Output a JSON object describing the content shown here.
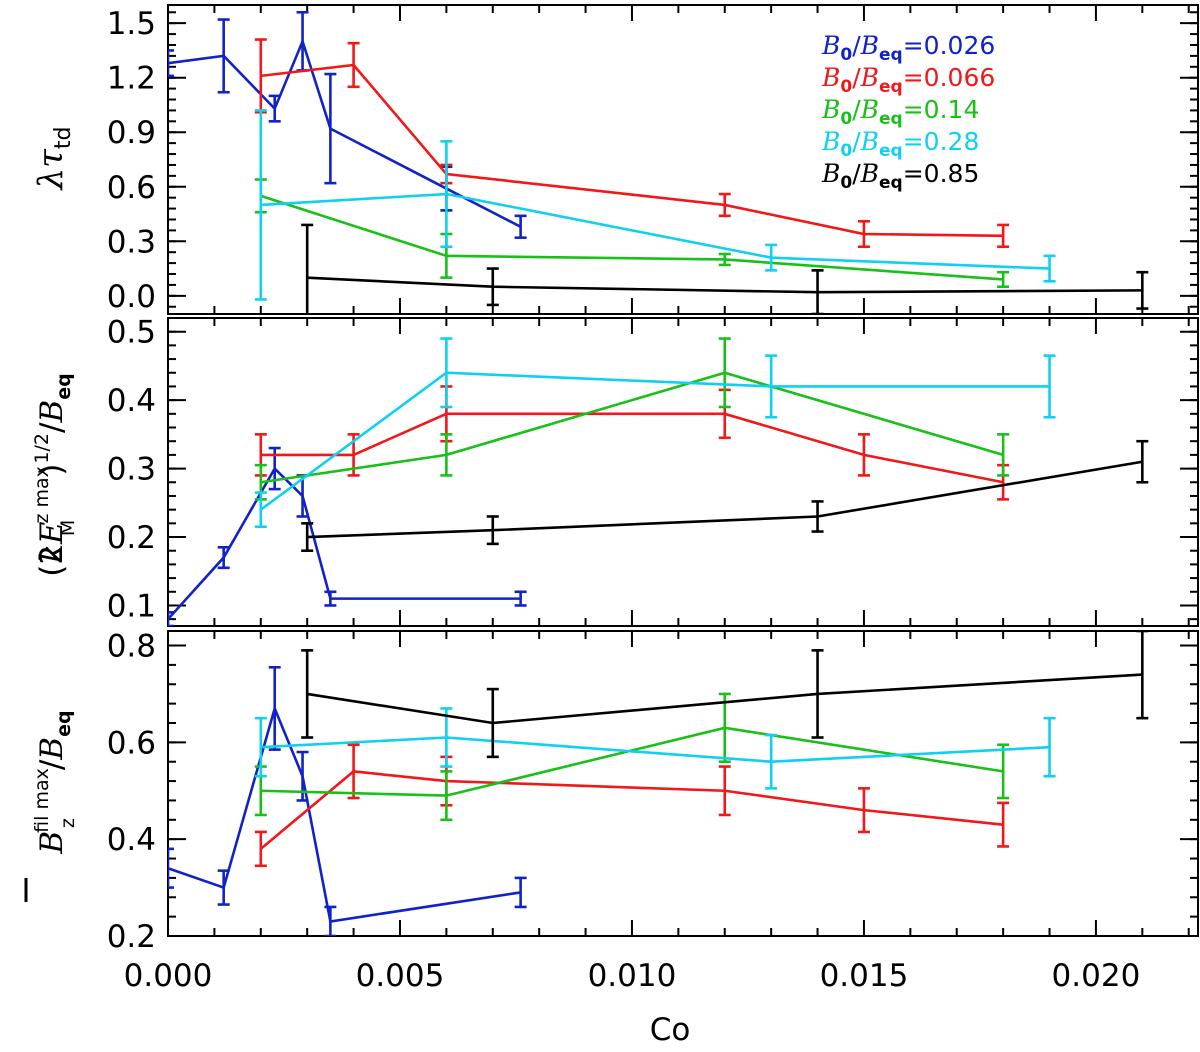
{
  "chart_data": [
    {
      "type": "line",
      "panel": "top",
      "ylabel": "λτ_td",
      "ylabel_parts": {
        "lambda": "λ",
        "tau": "τ",
        "sub": "td"
      },
      "ylim": [
        -0.1,
        1.6
      ],
      "yticks": [
        0.0,
        0.3,
        0.6,
        0.9,
        1.2,
        1.5
      ],
      "ytick_labels": [
        "0.0",
        "0.3",
        "0.6",
        "0.9",
        "1.2",
        "1.5"
      ],
      "series": [
        {
          "name": "B0/Beq=0.026",
          "color": "#1022c8",
          "x": [
            0.0,
            0.0012,
            0.0023,
            0.0029,
            0.0035,
            0.006,
            0.0076
          ],
          "y": [
            1.28,
            1.32,
            1.03,
            1.4,
            0.92,
            0.59,
            0.38
          ],
          "err": [
            0.07,
            0.2,
            0.07,
            0.16,
            0.3,
            0.12,
            0.06
          ]
        },
        {
          "name": "B0/Beq=0.066",
          "color": "#f01818",
          "x": [
            0.002,
            0.004,
            0.006,
            0.012,
            0.015,
            0.018
          ],
          "y": [
            1.21,
            1.27,
            0.67,
            0.5,
            0.34,
            0.33
          ],
          "err": [
            0.2,
            0.12,
            0.05,
            0.06,
            0.07,
            0.06
          ]
        },
        {
          "name": "B0/Beq=0.14",
          "color": "#18c018",
          "x": [
            0.002,
            0.006,
            0.012,
            0.018
          ],
          "y": [
            0.55,
            0.22,
            0.2,
            0.09
          ],
          "err": [
            0.09,
            0.12,
            0.03,
            0.04
          ]
        },
        {
          "name": "B0/Beq=0.28",
          "color": "#10d0f0",
          "x": [
            0.002,
            0.006,
            0.013,
            0.019
          ],
          "y": [
            0.5,
            0.56,
            0.21,
            0.15
          ],
          "err": [
            0.52,
            0.29,
            0.07,
            0.07
          ]
        },
        {
          "name": "B0/Beq=0.85",
          "color": "#000000",
          "x": [
            0.003,
            0.007,
            0.014,
            0.021
          ],
          "y": [
            0.1,
            0.05,
            0.02,
            0.03
          ],
          "err": [
            0.29,
            0.1,
            0.12,
            0.1
          ]
        }
      ]
    },
    {
      "type": "line",
      "panel": "middle",
      "ylabel": "(2kE_M^z max)^1/2 / B_eq",
      "ylim": [
        0.07,
        0.52
      ],
      "yticks": [
        0.1,
        0.2,
        0.3,
        0.4,
        0.5
      ],
      "ytick_labels": [
        "0.1",
        "0.2",
        "0.3",
        "0.4",
        "0.5"
      ],
      "series": [
        {
          "name": "B0/Beq=0.026",
          "color": "#1022c8",
          "x": [
            0.0,
            0.0012,
            0.0023,
            0.0029,
            0.0035,
            0.0076
          ],
          "y": [
            0.08,
            0.17,
            0.3,
            0.26,
            0.11,
            0.11
          ],
          "err": [
            0.01,
            0.015,
            0.03,
            0.03,
            0.01,
            0.01
          ]
        },
        {
          "name": "B0/Beq=0.066",
          "color": "#f01818",
          "x": [
            0.002,
            0.004,
            0.006,
            0.012,
            0.015,
            0.018
          ],
          "y": [
            0.32,
            0.32,
            0.38,
            0.38,
            0.32,
            0.28
          ],
          "err": [
            0.03,
            0.03,
            0.04,
            0.035,
            0.03,
            0.025
          ]
        },
        {
          "name": "B0/Beq=0.14",
          "color": "#18c018",
          "x": [
            0.002,
            0.006,
            0.012,
            0.018
          ],
          "y": [
            0.28,
            0.32,
            0.44,
            0.32
          ],
          "err": [
            0.025,
            0.03,
            0.05,
            0.03
          ]
        },
        {
          "name": "B0/Beq=0.28",
          "color": "#10d0f0",
          "x": [
            0.002,
            0.006,
            0.013,
            0.019
          ],
          "y": [
            0.24,
            0.44,
            0.42,
            0.42
          ],
          "err": [
            0.025,
            0.05,
            0.045,
            0.045
          ]
        },
        {
          "name": "B0/Beq=0.85",
          "color": "#000000",
          "x": [
            0.003,
            0.007,
            0.014,
            0.021
          ],
          "y": [
            0.2,
            0.21,
            0.23,
            0.31
          ],
          "err": [
            0.02,
            0.02,
            0.022,
            0.03
          ]
        }
      ]
    },
    {
      "type": "line",
      "panel": "bottom",
      "ylabel": "B̄_z^fil max / B_eq",
      "ylim": [
        0.2,
        0.83
      ],
      "yticks": [
        0.2,
        0.4,
        0.6,
        0.8
      ],
      "ytick_labels": [
        "0.2",
        "0.4",
        "0.6",
        "0.8"
      ],
      "series": [
        {
          "name": "B0/Beq=0.026",
          "color": "#1022c8",
          "x": [
            0.0,
            0.0012,
            0.0023,
            0.0029,
            0.0035,
            0.0076
          ],
          "y": [
            0.34,
            0.3,
            0.67,
            0.53,
            0.23,
            0.29
          ],
          "err": [
            0.04,
            0.035,
            0.085,
            0.05,
            0.03,
            0.03
          ]
        },
        {
          "name": "B0/Beq=0.066",
          "color": "#f01818",
          "x": [
            0.002,
            0.004,
            0.006,
            0.012,
            0.015,
            0.018
          ],
          "y": [
            0.38,
            0.54,
            0.52,
            0.5,
            0.46,
            0.43
          ],
          "err": [
            0.035,
            0.055,
            0.05,
            0.05,
            0.045,
            0.045
          ]
        },
        {
          "name": "B0/Beq=0.14",
          "color": "#18c018",
          "x": [
            0.002,
            0.006,
            0.012,
            0.018
          ],
          "y": [
            0.5,
            0.49,
            0.63,
            0.54
          ],
          "err": [
            0.05,
            0.05,
            0.07,
            0.055
          ]
        },
        {
          "name": "B0/Beq=0.28",
          "color": "#10d0f0",
          "x": [
            0.002,
            0.006,
            0.013,
            0.019
          ],
          "y": [
            0.59,
            0.61,
            0.56,
            0.59
          ],
          "err": [
            0.06,
            0.06,
            0.055,
            0.06
          ]
        },
        {
          "name": "B0/Beq=0.85",
          "color": "#000000",
          "x": [
            0.003,
            0.007,
            0.014,
            0.021
          ],
          "y": [
            0.7,
            0.64,
            0.7,
            0.74
          ],
          "err": [
            0.09,
            0.07,
            0.09,
            0.09
          ]
        }
      ]
    }
  ],
  "shared_x": {
    "xlabel": "Co",
    "xlim": [
      0.0,
      0.0222
    ],
    "xticks": [
      0.0,
      0.005,
      0.01,
      0.015,
      0.02
    ],
    "xtick_labels": [
      "0.000",
      "0.005",
      "0.010",
      "0.015",
      "0.020"
    ],
    "minor_xticks": [
      0.001,
      0.002,
      0.003,
      0.004,
      0.006,
      0.007,
      0.008,
      0.009,
      0.011,
      0.012,
      0.013,
      0.014,
      0.016,
      0.017,
      0.018,
      0.019,
      0.021,
      0.022
    ]
  },
  "legend": {
    "placement": "top-right",
    "entries": [
      {
        "prefix": "B",
        "sub0": "0",
        "slash": "/",
        "beq": "B",
        "subeq": "eq",
        "value": "=0.026",
        "color": "#1022c8"
      },
      {
        "prefix": "B",
        "sub0": "0",
        "slash": "/",
        "beq": "B",
        "subeq": "eq",
        "value": "=0.066",
        "color": "#f01818"
      },
      {
        "prefix": "B",
        "sub0": "0",
        "slash": "/",
        "beq": "B",
        "subeq": "eq",
        "value": "=0.14",
        "color": "#18c018"
      },
      {
        "prefix": "B",
        "sub0": "0",
        "slash": "/",
        "beq": "B",
        "subeq": "eq",
        "value": "=0.28",
        "color": "#10d0f0"
      },
      {
        "prefix": "B",
        "sub0": "0",
        "slash": "/",
        "beq": "B",
        "subeq": "eq",
        "value": "=0.85",
        "color": "#000000"
      }
    ]
  },
  "ylabels": {
    "middle": {
      "open": "(2",
      "k": "k",
      "E": "E",
      "sup": "z max",
      "sub": "M",
      "close": ")",
      "pow": "1/2",
      "slash": "/",
      "B": "B",
      "subeq": "eq"
    },
    "bottom": {
      "B": "B",
      "sup": "fil max",
      "sub": "z",
      "slash": "/",
      "B2": "B",
      "subeq": "eq"
    }
  }
}
